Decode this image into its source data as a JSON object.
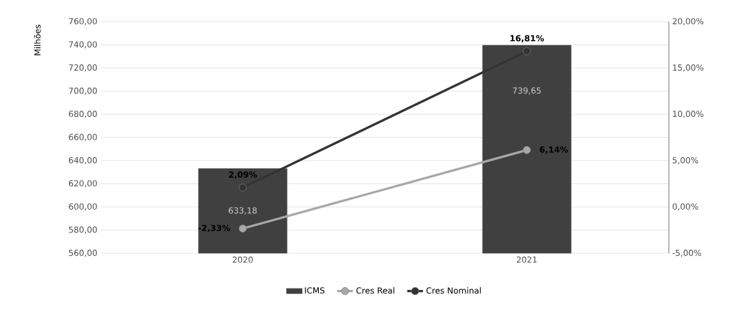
{
  "chart_data": {
    "type": "bar",
    "ylabel": "Milhões",
    "categories": [
      "2020",
      "2021"
    ],
    "series": [
      {
        "name": "ICMS",
        "color": "#404040",
        "values": [
          633.18,
          739.65
        ],
        "value_labels": [
          "633,18",
          "739,65"
        ]
      },
      {
        "name": "Cres Real",
        "type": "line",
        "axis": "y2",
        "color": "#a8a8a8",
        "values": [
          -2.33,
          6.14
        ],
        "value_labels": [
          "-2,33%",
          "6,14%"
        ]
      },
      {
        "name": "Cres Nominal",
        "type": "line",
        "axis": "y2",
        "color": "#333333",
        "values": [
          2.09,
          16.81
        ],
        "value_labels": [
          "2,09%",
          "16,81%"
        ]
      }
    ],
    "ylim": [
      560,
      760
    ],
    "yticks": [
      {
        "value": 560,
        "label": "560,00"
      },
      {
        "value": 580,
        "label": "580,00"
      },
      {
        "value": 600,
        "label": "600,00"
      },
      {
        "value": 620,
        "label": "620,00"
      },
      {
        "value": 640,
        "label": "640,00"
      },
      {
        "value": 660,
        "label": "660,00"
      },
      {
        "value": 680,
        "label": "680,00"
      },
      {
        "value": 700,
        "label": "700,00"
      },
      {
        "value": 720,
        "label": "720,00"
      },
      {
        "value": 740,
        "label": "740,00"
      },
      {
        "value": 760,
        "label": "760,00"
      }
    ],
    "y2lim": [
      -5,
      20
    ],
    "y2ticks": [
      {
        "value": -5,
        "label": "-5,00%"
      },
      {
        "value": 0,
        "label": "0,00%"
      },
      {
        "value": 5,
        "label": "5,00%"
      },
      {
        "value": 10,
        "label": "10,00%"
      },
      {
        "value": 15,
        "label": "15,00%"
      },
      {
        "value": 20,
        "label": "20,00%"
      }
    ],
    "grid": "y",
    "legend": "bottom",
    "marker": "circle"
  }
}
